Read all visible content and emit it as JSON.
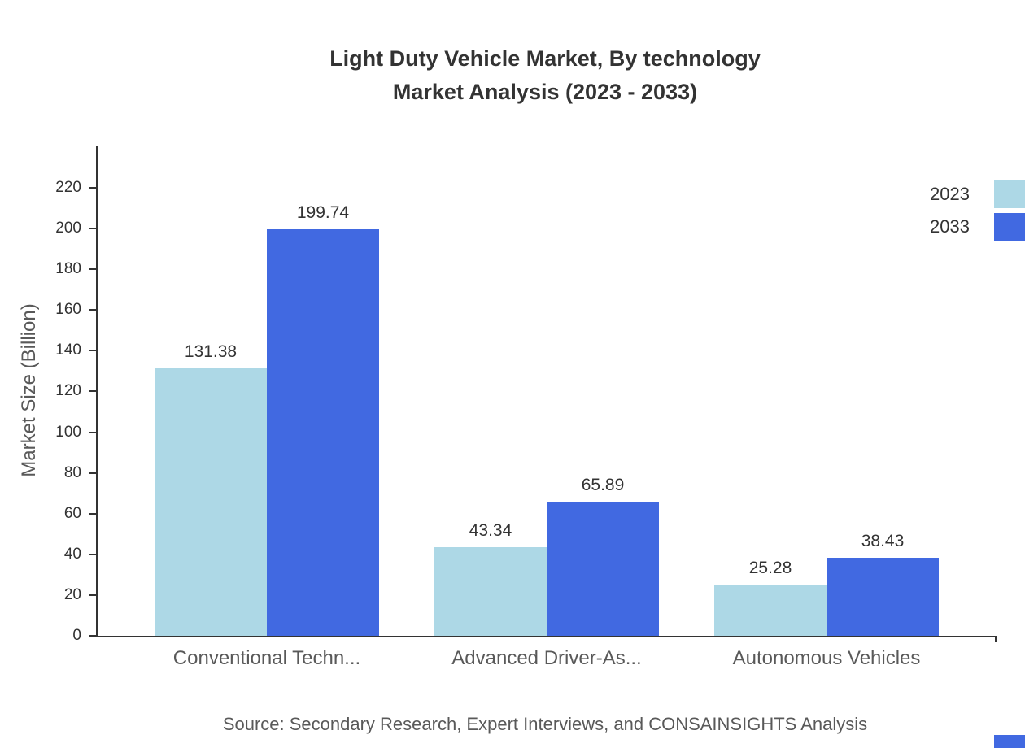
{
  "title": {
    "line1": "Light Duty Vehicle Market, By technology",
    "line2": "Market Analysis (2023 - 2033)"
  },
  "source": "Source: Secondary Research, Expert Interviews, and CONSAINSIGHTS Analysis",
  "chart_data": {
    "type": "bar",
    "title": "Light Duty Vehicle Market, By technology Market Analysis (2023 - 2033)",
    "categories": [
      "Conventional Techn...",
      "Advanced Driver-As...",
      "Autonomous Vehicles"
    ],
    "series": [
      {
        "name": "2023",
        "color": "#add8e6",
        "values": [
          131.38,
          43.34,
          25.28
        ]
      },
      {
        "name": "2033",
        "color": "#4169e1",
        "values": [
          199.74,
          65.89,
          38.43
        ]
      }
    ],
    "xlabel": "",
    "ylabel": "Market Size (Billion)",
    "ylim": [
      0,
      220
    ],
    "ytick_step": 20,
    "grid": false,
    "legend_position": "top-right",
    "value_labels_decimals": 2
  }
}
